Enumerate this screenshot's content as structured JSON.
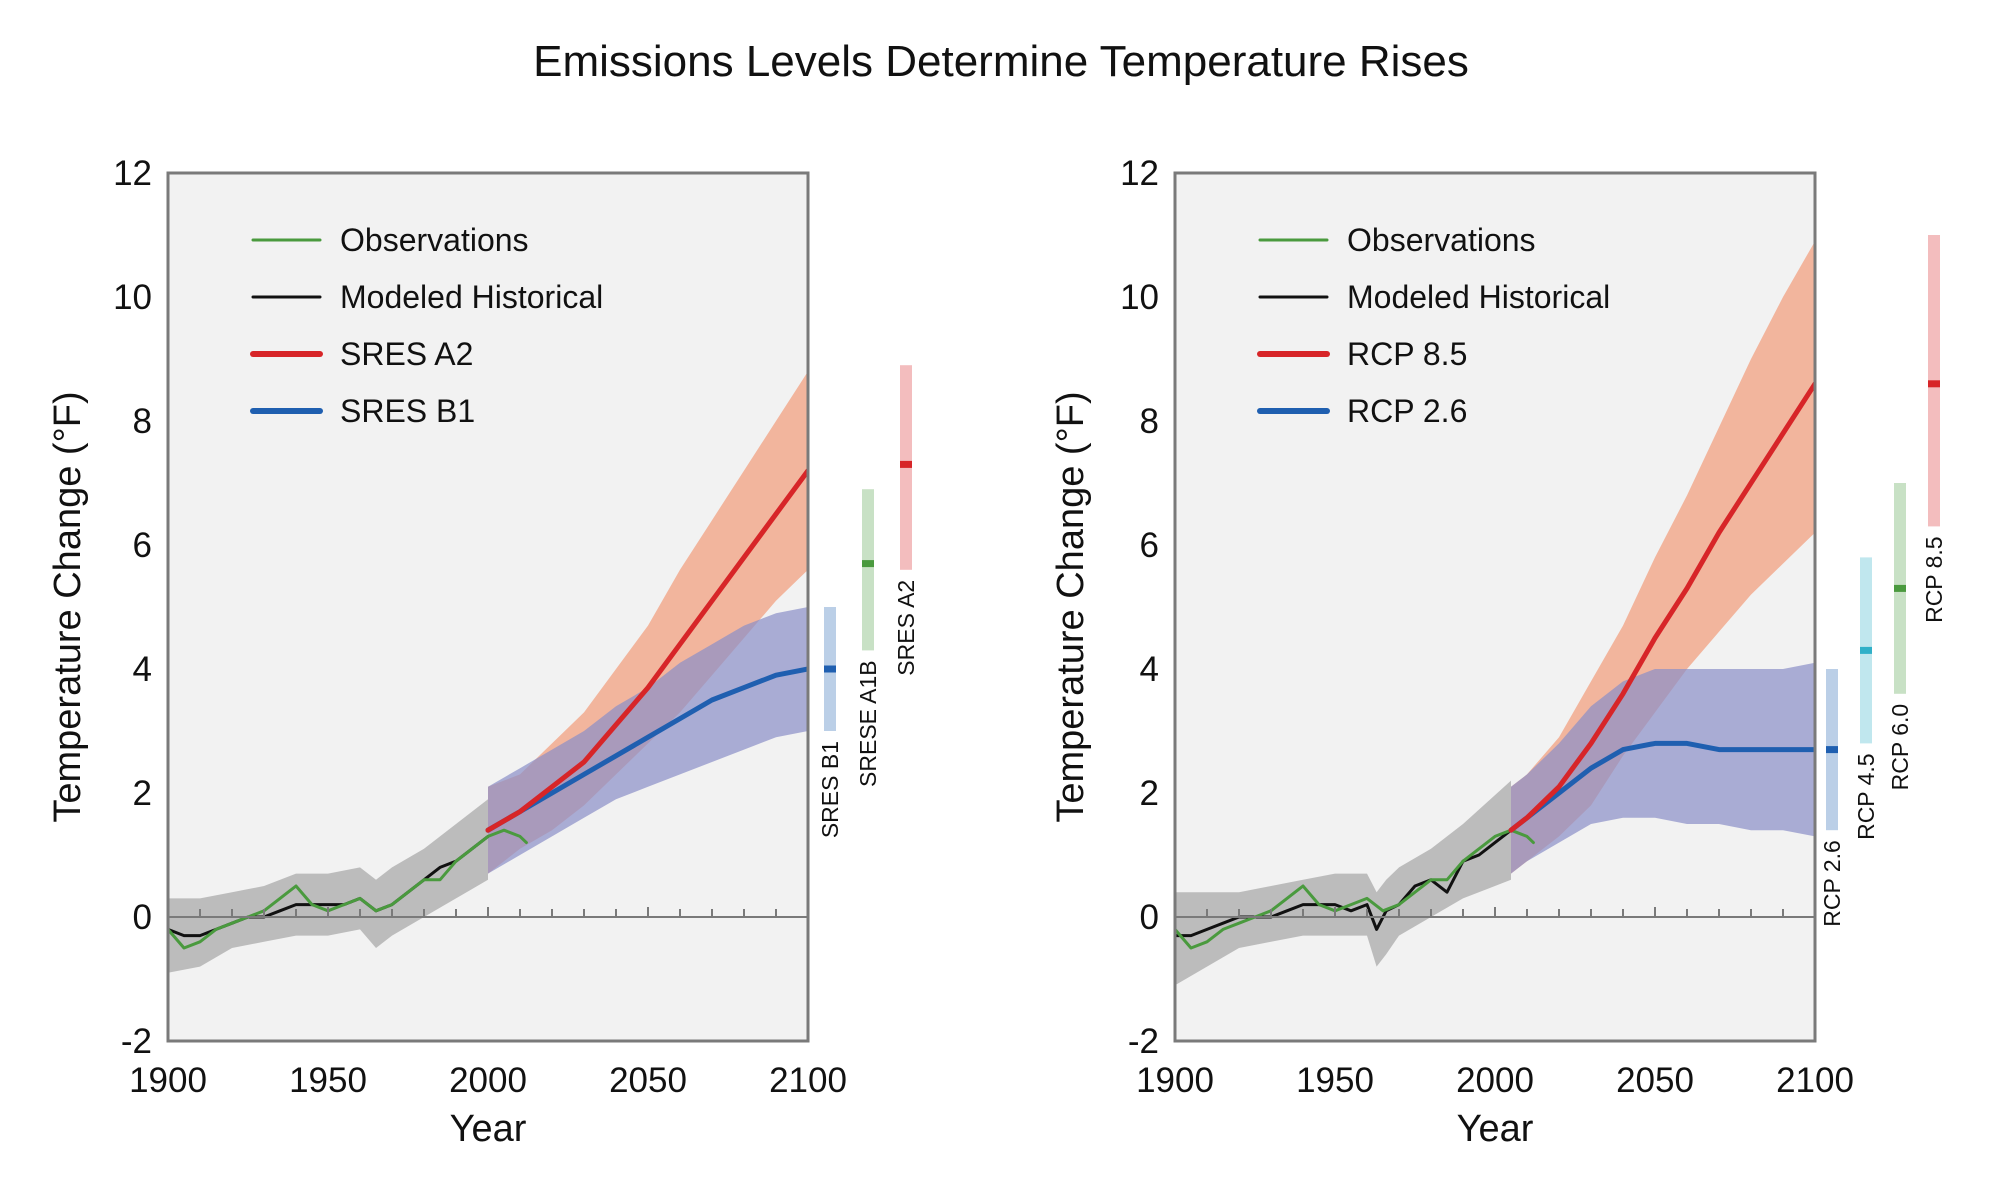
{
  "figure": {
    "title": "Emissions Levels Determine Temperature Rises"
  },
  "chart_data": [
    {
      "type": "line",
      "xlabel": "Year",
      "ylabel": "Temperature Change (°F)",
      "xlim": [
        1900,
        2100
      ],
      "ylim": [
        -2,
        12
      ],
      "x_ticks": [
        1900,
        1950,
        2000,
        2050,
        2100
      ],
      "y_ticks": [
        -2,
        0,
        2,
        4,
        6,
        8,
        10,
        12
      ],
      "grid": false,
      "legend_position": "top-left",
      "colors": {
        "observations": "#4a9a3e",
        "modeled": "#111111",
        "high": "#d72528",
        "high_band": "#f2a080",
        "low": "#1f5fb0",
        "low_band": "#8a8ec8",
        "historical_band": "#b3b3b3",
        "background": "#f2f2f2"
      },
      "legend": [
        {
          "label": "Observations",
          "color": "#4a9a3e"
        },
        {
          "label": "Modeled Historical",
          "color": "#111111"
        },
        {
          "label": "SRES A2",
          "color": "#d72528"
        },
        {
          "label": "SRES B1",
          "color": "#1f5fb0"
        }
      ],
      "series": [
        {
          "name": "Observations",
          "role": "observations",
          "x": [
            1900,
            1905,
            1910,
            1915,
            1920,
            1925,
            1930,
            1935,
            1940,
            1945,
            1950,
            1955,
            1960,
            1965,
            1970,
            1975,
            1980,
            1985,
            1990,
            1995,
            2000,
            2005,
            2010,
            2012
          ],
          "y": [
            -0.2,
            -0.5,
            -0.4,
            -0.2,
            -0.1,
            0.0,
            0.1,
            0.3,
            0.5,
            0.2,
            0.1,
            0.2,
            0.3,
            0.1,
            0.2,
            0.4,
            0.6,
            0.6,
            0.9,
            1.1,
            1.3,
            1.4,
            1.3,
            1.2
          ]
        },
        {
          "name": "Modeled Historical",
          "role": "modeled",
          "x": [
            1900,
            1905,
            1910,
            1915,
            1920,
            1925,
            1930,
            1935,
            1940,
            1945,
            1950,
            1955,
            1960,
            1965,
            1970,
            1975,
            1980,
            1985,
            1990,
            1995,
            2000
          ],
          "y": [
            -0.2,
            -0.3,
            -0.3,
            -0.2,
            -0.1,
            0.0,
            0.0,
            0.1,
            0.2,
            0.2,
            0.2,
            0.2,
            0.3,
            0.1,
            0.2,
            0.4,
            0.6,
            0.8,
            0.9,
            1.1,
            1.3
          ]
        },
        {
          "name": "SRES A2",
          "role": "high",
          "x": [
            2000,
            2010,
            2020,
            2030,
            2040,
            2050,
            2060,
            2070,
            2080,
            2090,
            2100
          ],
          "y": [
            1.4,
            1.7,
            2.1,
            2.5,
            3.1,
            3.7,
            4.4,
            5.1,
            5.8,
            6.5,
            7.2
          ],
          "band_low": [
            0.7,
            1.1,
            1.4,
            1.8,
            2.3,
            2.8,
            3.3,
            3.9,
            4.5,
            5.1,
            5.6
          ],
          "band_high": [
            2.1,
            2.3,
            2.8,
            3.3,
            4.0,
            4.7,
            5.6,
            6.4,
            7.2,
            8.0,
            8.8
          ]
        },
        {
          "name": "SRES B1",
          "role": "low",
          "x": [
            2000,
            2010,
            2020,
            2030,
            2040,
            2050,
            2060,
            2070,
            2080,
            2090,
            2100
          ],
          "y": [
            1.4,
            1.7,
            2.0,
            2.3,
            2.6,
            2.9,
            3.2,
            3.5,
            3.7,
            3.9,
            4.0
          ],
          "band_low": [
            0.7,
            1.0,
            1.3,
            1.6,
            1.9,
            2.1,
            2.3,
            2.5,
            2.7,
            2.9,
            3.0
          ],
          "band_high": [
            2.1,
            2.4,
            2.7,
            3.0,
            3.4,
            3.7,
            4.1,
            4.4,
            4.7,
            4.9,
            5.0
          ]
        }
      ],
      "historical_band": {
        "x": [
          1900,
          1910,
          1920,
          1930,
          1940,
          1950,
          1960,
          1965,
          1970,
          1980,
          1990,
          2000
        ],
        "low": [
          -0.9,
          -0.8,
          -0.5,
          -0.4,
          -0.3,
          -0.3,
          -0.2,
          -0.5,
          -0.3,
          0.0,
          0.3,
          0.6
        ],
        "high": [
          0.3,
          0.3,
          0.4,
          0.5,
          0.7,
          0.7,
          0.8,
          0.6,
          0.8,
          1.1,
          1.5,
          1.9
        ]
      },
      "range_bars": [
        {
          "label": "SRES B1",
          "low": 3.0,
          "high": 5.0,
          "mean": 4.0,
          "color": "#1f5fb0"
        },
        {
          "label": "SRESE A1B",
          "low": 4.3,
          "high": 6.9,
          "mean": 5.7,
          "color": "#4a9a3e"
        },
        {
          "label": "SRES A2",
          "low": 5.6,
          "high": 8.9,
          "mean": 7.3,
          "color": "#d72528"
        }
      ]
    },
    {
      "type": "line",
      "xlabel": "Year",
      "ylabel": "Temperature Change (°F)",
      "xlim": [
        1900,
        2100
      ],
      "ylim": [
        -2,
        12
      ],
      "x_ticks": [
        1900,
        1950,
        2000,
        2050,
        2100
      ],
      "y_ticks": [
        -2,
        0,
        2,
        4,
        6,
        8,
        10,
        12
      ],
      "grid": false,
      "legend_position": "top-left",
      "colors": {
        "observations": "#4a9a3e",
        "modeled": "#111111",
        "high": "#d72528",
        "high_band": "#f2a080",
        "low": "#1f5fb0",
        "low_band": "#8a8ec8",
        "historical_band": "#b3b3b3",
        "background": "#f2f2f2"
      },
      "legend": [
        {
          "label": "Observations",
          "color": "#4a9a3e"
        },
        {
          "label": "Modeled Historical",
          "color": "#111111"
        },
        {
          "label": "RCP 8.5",
          "color": "#d72528"
        },
        {
          "label": "RCP 2.6",
          "color": "#1f5fb0"
        }
      ],
      "series": [
        {
          "name": "Observations",
          "role": "observations",
          "x": [
            1900,
            1905,
            1910,
            1915,
            1920,
            1925,
            1930,
            1935,
            1940,
            1945,
            1950,
            1955,
            1960,
            1965,
            1970,
            1975,
            1980,
            1985,
            1990,
            1995,
            2000,
            2005,
            2010,
            2012
          ],
          "y": [
            -0.2,
            -0.5,
            -0.4,
            -0.2,
            -0.1,
            0.0,
            0.1,
            0.3,
            0.5,
            0.2,
            0.1,
            0.2,
            0.3,
            0.1,
            0.2,
            0.4,
            0.6,
            0.6,
            0.9,
            1.1,
            1.3,
            1.4,
            1.3,
            1.2
          ]
        },
        {
          "name": "Modeled Historical",
          "role": "modeled",
          "x": [
            1900,
            1905,
            1910,
            1915,
            1920,
            1925,
            1930,
            1935,
            1940,
            1945,
            1950,
            1955,
            1960,
            1963,
            1966,
            1970,
            1975,
            1980,
            1985,
            1990,
            1995,
            2000,
            2005
          ],
          "y": [
            -0.3,
            -0.3,
            -0.2,
            -0.1,
            0.0,
            0.0,
            0.0,
            0.1,
            0.2,
            0.2,
            0.2,
            0.1,
            0.2,
            -0.2,
            0.1,
            0.2,
            0.5,
            0.6,
            0.4,
            0.9,
            1.0,
            1.2,
            1.4
          ]
        },
        {
          "name": "RCP 8.5",
          "role": "high",
          "x": [
            2005,
            2010,
            2020,
            2030,
            2040,
            2050,
            2060,
            2070,
            2080,
            2090,
            2100
          ],
          "y": [
            1.4,
            1.6,
            2.1,
            2.8,
            3.6,
            4.5,
            5.3,
            6.2,
            7.0,
            7.8,
            8.6
          ],
          "band_low": [
            0.7,
            0.9,
            1.3,
            1.8,
            2.6,
            3.3,
            4.0,
            4.6,
            5.2,
            5.7,
            6.2
          ],
          "band_high": [
            2.1,
            2.3,
            2.9,
            3.8,
            4.7,
            5.8,
            6.8,
            7.9,
            9.0,
            10.0,
            10.9
          ]
        },
        {
          "name": "RCP 2.6",
          "role": "low",
          "x": [
            2005,
            2010,
            2020,
            2030,
            2040,
            2050,
            2060,
            2070,
            2080,
            2090,
            2100
          ],
          "y": [
            1.4,
            1.6,
            2.0,
            2.4,
            2.7,
            2.8,
            2.8,
            2.7,
            2.7,
            2.7,
            2.7
          ],
          "band_low": [
            0.7,
            0.9,
            1.2,
            1.5,
            1.6,
            1.6,
            1.5,
            1.5,
            1.4,
            1.4,
            1.3
          ],
          "band_high": [
            2.1,
            2.3,
            2.8,
            3.4,
            3.8,
            4.0,
            4.0,
            4.0,
            4.0,
            4.0,
            4.1
          ]
        }
      ],
      "historical_band": {
        "x": [
          1900,
          1910,
          1920,
          1930,
          1940,
          1950,
          1960,
          1963,
          1966,
          1970,
          1980,
          1990,
          2005
        ],
        "low": [
          -1.1,
          -0.8,
          -0.5,
          -0.4,
          -0.3,
          -0.3,
          -0.3,
          -0.8,
          -0.6,
          -0.3,
          0.0,
          0.3,
          0.6
        ],
        "high": [
          0.4,
          0.4,
          0.4,
          0.5,
          0.6,
          0.7,
          0.7,
          0.4,
          0.6,
          0.8,
          1.1,
          1.5,
          2.2
        ]
      },
      "range_bars": [
        {
          "label": "RCP 2.6",
          "low": 1.4,
          "high": 4.0,
          "mean": 2.7,
          "color": "#1f5fb0"
        },
        {
          "label": "RCP 4.5",
          "low": 2.8,
          "high": 5.8,
          "mean": 4.3,
          "color": "#30b0c8"
        },
        {
          "label": "RCP 6.0",
          "low": 3.6,
          "high": 7.0,
          "mean": 5.3,
          "color": "#4a9a3e"
        },
        {
          "label": "RCP 8.5",
          "low": 6.3,
          "high": 11.0,
          "mean": 8.6,
          "color": "#d72528"
        }
      ]
    }
  ]
}
